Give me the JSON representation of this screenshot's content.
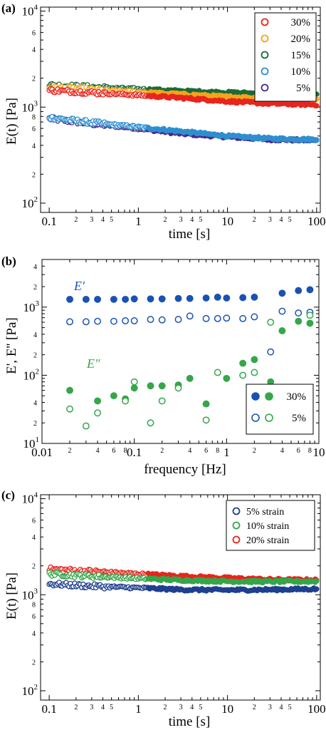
{
  "colors": {
    "red": "#e8251e",
    "orange": "#f3a51c",
    "dark_green": "#1c6b39",
    "light_blue": "#2e8fcf",
    "purple": "#4b2a8e",
    "navy": "#1f3f8f",
    "blue": "#1a52b3",
    "green": "#35a64a"
  },
  "chart_data": [
    {
      "id": "a",
      "panel_label": "(a)",
      "type": "scatter",
      "xscale": "log",
      "yscale": "log",
      "xlim": [
        0.08,
        110
      ],
      "ylim": [
        80,
        11000
      ],
      "xlabel": "time [s]",
      "ylabel": "E(t) [Pa]",
      "legend": {
        "position": "top-right",
        "entries": [
          {
            "label": "30%",
            "color": "red"
          },
          {
            "label": "20%",
            "color": "orange"
          },
          {
            "label": "15%",
            "color": "dark_green"
          },
          {
            "label": "10%",
            "color": "light_blue"
          },
          {
            "label": "5%",
            "color": "purple"
          }
        ]
      },
      "series": [
        {
          "name": "30%",
          "color": "red",
          "points": [
            [
              0.1,
              1500
            ],
            [
              0.3,
              1420
            ],
            [
              1,
              1330
            ],
            [
              3,
              1250
            ],
            [
              10,
              1150
            ],
            [
              30,
              1090
            ],
            [
              100,
              1060
            ]
          ]
        },
        {
          "name": "20%",
          "color": "orange",
          "points": [
            [
              0.1,
              1600
            ],
            [
              0.3,
              1520
            ],
            [
              1,
              1430
            ],
            [
              3,
              1360
            ],
            [
              10,
              1280
            ],
            [
              30,
              1230
            ],
            [
              100,
              1210
            ]
          ]
        },
        {
          "name": "15%",
          "color": "dark_green",
          "points": [
            [
              0.1,
              1700
            ],
            [
              0.3,
              1620
            ],
            [
              1,
              1540
            ],
            [
              3,
              1470
            ],
            [
              10,
              1420
            ],
            [
              30,
              1380
            ],
            [
              100,
              1370
            ]
          ]
        },
        {
          "name": "10%",
          "color": "light_blue",
          "points": [
            [
              0.1,
              780
            ],
            [
              0.3,
              690
            ],
            [
              1,
              620
            ],
            [
              3,
              560
            ],
            [
              10,
              500
            ],
            [
              30,
              470
            ],
            [
              100,
              460
            ]
          ]
        },
        {
          "name": "5%",
          "color": "purple",
          "points": [
            [
              0.1,
              760
            ],
            [
              0.3,
              670
            ],
            [
              1,
              600
            ],
            [
              3,
              530
            ],
            [
              10,
              490
            ],
            [
              30,
              460
            ],
            [
              100,
              450
            ]
          ]
        }
      ]
    },
    {
      "id": "b",
      "panel_label": "(b)",
      "type": "scatter",
      "xscale": "log",
      "yscale": "log",
      "xlim": [
        0.01,
        10
      ],
      "ylim": [
        10,
        5000
      ],
      "xlabel": "frequency [Hz]",
      "ylabel": "E', E'' [Pa]",
      "annotations": [
        "E′",
        "E″"
      ],
      "legend": {
        "position": "bottom-right",
        "entries": [
          {
            "label": "30%",
            "filled": true
          },
          {
            "label": "5%",
            "filled": false
          }
        ]
      },
      "series": [
        {
          "name": "E' 30%",
          "color": "blue",
          "filled": true,
          "points": [
            [
              0.02,
              1300
            ],
            [
              0.03,
              1300
            ],
            [
              0.04,
              1300
            ],
            [
              0.06,
              1300
            ],
            [
              0.08,
              1300
            ],
            [
              0.1,
              1320
            ],
            [
              0.15,
              1320
            ],
            [
              0.2,
              1320
            ],
            [
              0.3,
              1340
            ],
            [
              0.4,
              1340
            ],
            [
              0.6,
              1360
            ],
            [
              0.8,
              1400
            ],
            [
              1,
              1360
            ],
            [
              1.5,
              1380
            ],
            [
              2,
              1400
            ],
            [
              4,
              1600
            ],
            [
              6,
              1750
            ],
            [
              8,
              1800
            ]
          ]
        },
        {
          "name": "E' 5%",
          "color": "blue",
          "filled": false,
          "points": [
            [
              0.02,
              610
            ],
            [
              0.03,
              610
            ],
            [
              0.04,
              620
            ],
            [
              0.06,
              620
            ],
            [
              0.08,
              630
            ],
            [
              0.1,
              630
            ],
            [
              0.15,
              660
            ],
            [
              0.2,
              650
            ],
            [
              0.3,
              660
            ],
            [
              0.4,
              740
            ],
            [
              0.6,
              680
            ],
            [
              0.8,
              680
            ],
            [
              1,
              690
            ],
            [
              1.5,
              680
            ],
            [
              2,
              720
            ],
            [
              3,
              220
            ],
            [
              4,
              870
            ],
            [
              6,
              820
            ],
            [
              8,
              840
            ]
          ]
        },
        {
          "name": "E'' 30%",
          "color": "green",
          "filled": true,
          "points": [
            [
              0.02,
              60
            ],
            [
              0.04,
              42
            ],
            [
              0.06,
              50
            ],
            [
              0.08,
              45
            ],
            [
              0.1,
              65
            ],
            [
              0.15,
              70
            ],
            [
              0.2,
              70
            ],
            [
              0.3,
              72
            ],
            [
              0.4,
              90
            ],
            [
              0.6,
              38
            ],
            [
              1,
              90
            ],
            [
              1.5,
              150
            ],
            [
              2,
              170
            ],
            [
              3,
              80
            ],
            [
              4,
              450
            ],
            [
              6,
              620
            ],
            [
              8,
              580
            ]
          ]
        },
        {
          "name": "E'' 5%",
          "color": "green",
          "filled": false,
          "points": [
            [
              0.02,
              32
            ],
            [
              0.03,
              18
            ],
            [
              0.04,
              28
            ],
            [
              0.08,
              42
            ],
            [
              0.1,
              80
            ],
            [
              0.15,
              20
            ],
            [
              0.2,
              42
            ],
            [
              0.3,
              65
            ],
            [
              0.6,
              22
            ],
            [
              0.8,
              110
            ],
            [
              1.5,
              100
            ],
            [
              2,
              110
            ],
            [
              3,
              600
            ],
            [
              8,
              760
            ]
          ]
        }
      ]
    },
    {
      "id": "c",
      "panel_label": "(c)",
      "type": "scatter",
      "xscale": "log",
      "yscale": "log",
      "xlim": [
        0.08,
        110
      ],
      "ylim": [
        80,
        11000
      ],
      "xlabel": "time [s]",
      "ylabel": "E(t) [Pa]",
      "legend": {
        "position": "top-right",
        "entries": [
          {
            "label": "5% strain",
            "color": "navy"
          },
          {
            "label": "10% strain",
            "color": "green"
          },
          {
            "label": "20% strain",
            "color": "red"
          }
        ]
      },
      "series": [
        {
          "name": "5% strain",
          "color": "navy",
          "points": [
            [
              0.1,
              1300
            ],
            [
              0.3,
              1230
            ],
            [
              1,
              1180
            ],
            [
              3,
              1130
            ],
            [
              10,
              1120
            ],
            [
              30,
              1130
            ],
            [
              100,
              1150
            ]
          ]
        },
        {
          "name": "10% strain",
          "color": "green",
          "points": [
            [
              0.1,
              1650
            ],
            [
              0.3,
              1560
            ],
            [
              1,
              1480
            ],
            [
              3,
              1420
            ],
            [
              10,
              1380
            ],
            [
              30,
              1370
            ],
            [
              100,
              1380
            ]
          ]
        },
        {
          "name": "20% strain",
          "color": "red",
          "points": [
            [
              0.1,
              1850
            ],
            [
              0.3,
              1750
            ],
            [
              1,
              1650
            ],
            [
              3,
              1560
            ],
            [
              10,
              1490
            ],
            [
              30,
              1440
            ],
            [
              100,
              1420
            ]
          ]
        }
      ]
    }
  ]
}
